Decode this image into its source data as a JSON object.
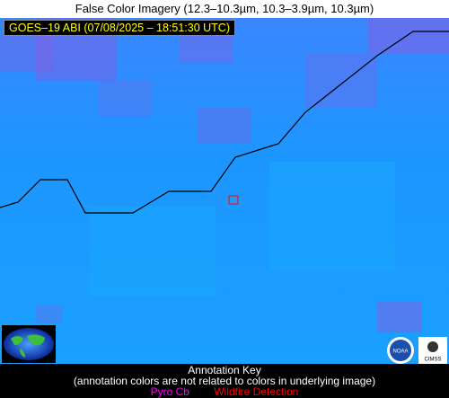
{
  "header": {
    "title": "False Color Imagery (12.3–10.3µm, 10.3–3.9µm, 10.3µm)"
  },
  "image": {
    "timestamp": "GOES–19 ABI (07/08/2025 – 18:51:30 UTC)"
  },
  "logos": [
    "NOAA",
    "CIMSS"
  ],
  "key": {
    "title": "Annotation Key",
    "note": "(annotation colors are not related to colors in underlying image)",
    "items": [
      "Pyro Cb",
      "Wildfire Detection"
    ]
  }
}
